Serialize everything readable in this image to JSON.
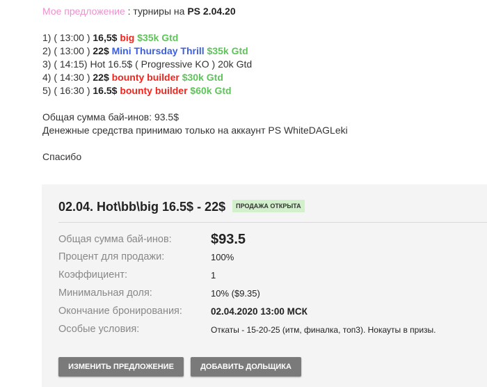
{
  "post": {
    "heading": {
      "label": "Мое предложение",
      "sep": " : турниры на ",
      "site": "PS 2.04.20"
    },
    "tournaments": [
      {
        "num": "1) ( 13:00 ) ",
        "buyin": "16,5$",
        "name": "big",
        "name_color": "red",
        "gtd": "$35k Gtd"
      },
      {
        "num": "2) ( 13:00 ) ",
        "buyin": "22$",
        "name": "Mini Thursday Thrill",
        "name_color": "blue",
        "gtd": "$35k Gtd"
      },
      {
        "plain": "3) ( 14:15) Hot 16.5$ ( Progressive KO ) 20k Gtd"
      },
      {
        "num": "4) ( 14:30 ) ",
        "buyin": "22$",
        "name": "bounty builder",
        "name_color": "red",
        "gtd": "$30k Gtd"
      },
      {
        "num": "5) ( 16:30 ) ",
        "buyin": "16.5$",
        "name": "bounty builder",
        "name_color": "red",
        "gtd": "$60k Gtd"
      }
    ],
    "total": "Общая сумма бай-инов: 93.5$",
    "account": "Денежные средства принимаю только на аккаунт PS WhiteDAGLeki",
    "thanks": "Спасибо"
  },
  "offer": {
    "title": "02.04. Hot\\bb\\big 16.5$ - 22$",
    "badge": "ПРОДАЖА ОТКРЫТА",
    "badge_color": "#d3f0cd",
    "rows": [
      {
        "label": "Общая сумма бай-инов:",
        "value": "$93.5"
      },
      {
        "label": "Процент для продажи:",
        "value": "100%"
      },
      {
        "label": "Коэффициент:",
        "value": "1"
      },
      {
        "label": "Минимальная доля:",
        "value": "10% ($9.35)"
      },
      {
        "label": "Окончание бронирования:",
        "value": "02.04.2020 13:00 МСК"
      },
      {
        "label": "Особые условия:",
        "value": "Откаты - 15-20-25 (итм, финалка, топ3). Нокауты в призы."
      }
    ],
    "edit_button": "ИЗМЕНИТЬ ПРЕДЛОЖЕНИЕ",
    "add_button": "ДОБАВИТЬ ДОЛЬЩИКА"
  }
}
